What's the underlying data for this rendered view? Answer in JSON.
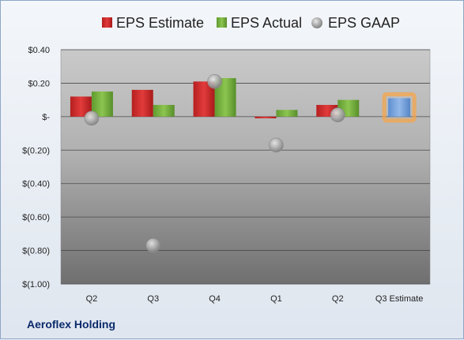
{
  "colors": {
    "estimate": "#d42d2d",
    "actual": "#7cb342",
    "gaap": "#a8a8a8",
    "q3_estimate": "#7fa7dd",
    "q3_estimate_glow": "#f5a54a"
  },
  "footer": {
    "company": "Aeroflex Holding"
  },
  "chart_data": {
    "type": "bar",
    "title": "",
    "xlabel": "",
    "ylabel": "",
    "ylim": [
      -1.0,
      0.4
    ],
    "y_ticks": [
      {
        "value": 0.4,
        "label": "$0.40"
      },
      {
        "value": 0.2,
        "label": "$0.20"
      },
      {
        "value": 0.0,
        "label": "$-"
      },
      {
        "value": -0.2,
        "label": "$(0.20)"
      },
      {
        "value": -0.4,
        "label": "$(0.40)"
      },
      {
        "value": -0.6,
        "label": "$(0.60)"
      },
      {
        "value": -0.8,
        "label": "$(0.80)"
      },
      {
        "value": -1.0,
        "label": "$(1.00)"
      }
    ],
    "categories": [
      "Q2",
      "Q3",
      "Q4",
      "Q1",
      "Q2",
      "Q3 Estimate"
    ],
    "grid": true,
    "legend_position": "top",
    "series": [
      {
        "name": "EPS Estimate",
        "kind": "bar",
        "values": [
          0.12,
          0.16,
          0.21,
          -0.01,
          0.07,
          null
        ]
      },
      {
        "name": "EPS Actual",
        "kind": "bar",
        "values": [
          0.15,
          0.07,
          0.23,
          0.04,
          0.1,
          null
        ]
      },
      {
        "name": "EPS GAAP",
        "kind": "scatter",
        "values": [
          -0.01,
          -0.77,
          0.21,
          -0.17,
          0.01,
          null
        ]
      }
    ],
    "q3_estimate_value": 0.11
  }
}
